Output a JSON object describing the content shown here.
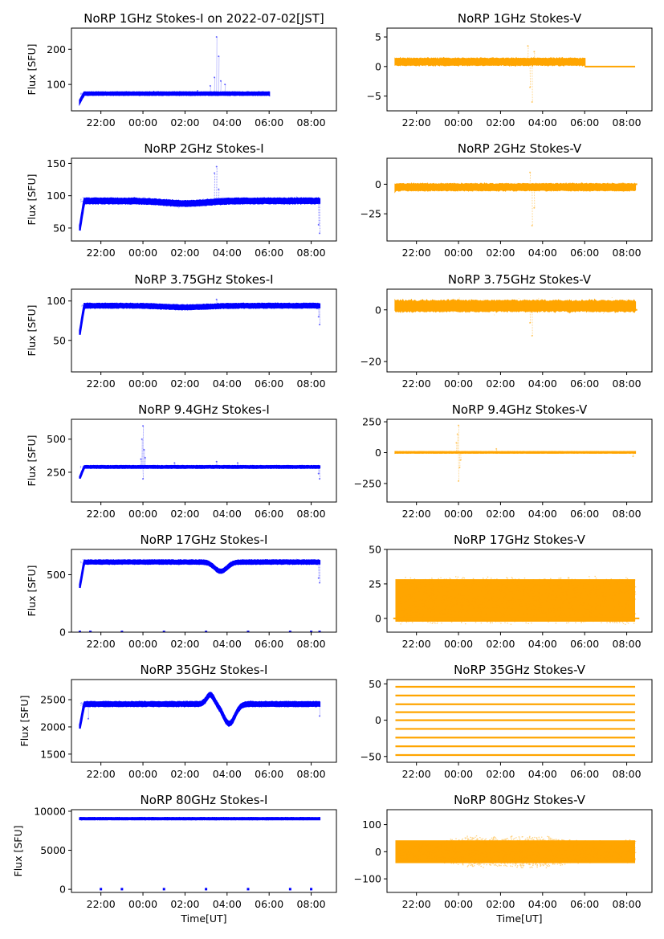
{
  "chart_data": [
    {
      "type": "scatter",
      "title": "NoRP 1GHz Stokes-I on 2022-07-02[JST]",
      "ylabel": "Flux [SFU]",
      "xlabel": "",
      "color": "#0000ff",
      "xlim": [
        20.6,
        33.2
      ],
      "ylim": [
        25,
        260
      ],
      "yticks": [
        {
          "v": 100,
          "label": "100"
        },
        {
          "v": 200,
          "label": "200"
        }
      ],
      "series": [
        {
          "name": "",
          "x_start": 21.0,
          "x_end": 30.0,
          "level": 74,
          "noise": 3,
          "rise_from": 52,
          "spikes": [
            {
              "x": 23.2,
              "y": 78
            },
            {
              "x": 24.5,
              "y": 80
            },
            {
              "x": 26.6,
              "y": 82
            },
            {
              "x": 27.2,
              "y": 96
            },
            {
              "x": 27.4,
              "y": 120
            },
            {
              "x": 27.5,
              "y": 235
            },
            {
              "x": 27.6,
              "y": 180
            },
            {
              "x": 27.7,
              "y": 110
            },
            {
              "x": 27.9,
              "y": 100
            }
          ]
        }
      ]
    },
    {
      "type": "scatter",
      "title": "NoRP 1GHz Stokes-V",
      "ylabel": "",
      "xlabel": "",
      "color": "#ffa500",
      "xlim": [
        20.6,
        33.2
      ],
      "ylim": [
        -7.5,
        6.5
      ],
      "yticks": [
        {
          "v": 5,
          "label": "5"
        },
        {
          "v": 0,
          "label": "0"
        },
        {
          "v": -5,
          "label": "−5"
        }
      ],
      "series": [
        {
          "name": "",
          "x_start": 21.0,
          "x_end": 30.0,
          "level": 0.8,
          "noise": 0.4,
          "tail_start": 30.0,
          "tail_end": 32.4,
          "tail_level": 0.0,
          "spikes": [
            {
              "x": 27.3,
              "y": 3.5
            },
            {
              "x": 27.4,
              "y": -3.5
            },
            {
              "x": 27.5,
              "y": -6.0
            },
            {
              "x": 27.6,
              "y": 2.5
            }
          ]
        }
      ]
    },
    {
      "type": "scatter",
      "title": "NoRP 2GHz Stokes-I",
      "ylabel": "Flux [SFU]",
      "xlabel": "",
      "color": "#0000ff",
      "xlim": [
        20.6,
        33.2
      ],
      "ylim": [
        30,
        158
      ],
      "yticks": [
        {
          "v": 50,
          "label": "50"
        },
        {
          "v": 100,
          "label": "100"
        },
        {
          "v": 150,
          "label": "150"
        }
      ],
      "series": [
        {
          "name": "",
          "x_start": 21.0,
          "x_end": 32.4,
          "level": 92,
          "noise": 3,
          "rise_from": 50,
          "dip": {
            "x": 26,
            "depth": 4,
            "width": 4
          },
          "spikes": [
            {
              "x": 27.5,
              "y": 145
            },
            {
              "x": 27.4,
              "y": 135
            },
            {
              "x": 27.6,
              "y": 110
            },
            {
              "x": 32.4,
              "y": 42
            },
            {
              "x": 32.35,
              "y": 55
            }
          ]
        }
      ]
    },
    {
      "type": "scatter",
      "title": "NoRP 2GHz Stokes-V",
      "ylabel": "",
      "xlabel": "",
      "color": "#ffa500",
      "xlim": [
        20.6,
        33.2
      ],
      "ylim": [
        -48,
        22
      ],
      "yticks": [
        {
          "v": 0,
          "label": "0"
        },
        {
          "v": -25,
          "label": "−25"
        }
      ],
      "series": [
        {
          "name": "",
          "x_start": 21.0,
          "x_end": 32.4,
          "level": -2.5,
          "noise": 2,
          "tail_start": 32.4,
          "tail_end": 32.5,
          "tail_level": 0.0,
          "spikes": [
            {
              "x": 27.4,
              "y": 10
            },
            {
              "x": 27.5,
              "y": -35
            },
            {
              "x": 27.6,
              "y": -20
            }
          ]
        }
      ]
    },
    {
      "type": "scatter",
      "title": "NoRP 3.75GHz Stokes-I",
      "ylabel": "Flux [SFU]",
      "xlabel": "",
      "color": "#0000ff",
      "xlim": [
        20.6,
        33.2
      ],
      "ylim": [
        10,
        115
      ],
      "yticks": [
        {
          "v": 50,
          "label": "50"
        },
        {
          "v": 100,
          "label": "100"
        }
      ],
      "series": [
        {
          "name": "",
          "x_start": 21.0,
          "x_end": 32.4,
          "level": 94,
          "noise": 2,
          "rise_from": 60,
          "dip": {
            "x": 26,
            "depth": 2,
            "width": 4
          },
          "spikes": [
            {
              "x": 27.5,
              "y": 102
            },
            {
              "x": 32.4,
              "y": 70
            },
            {
              "x": 32.35,
              "y": 80
            }
          ]
        }
      ]
    },
    {
      "type": "scatter",
      "title": "NoRP 3.75GHz Stokes-V",
      "ylabel": "",
      "xlabel": "",
      "color": "#ffa500",
      "xlim": [
        20.6,
        33.2
      ],
      "ylim": [
        -24,
        8
      ],
      "yticks": [
        {
          "v": 0,
          "label": "0"
        },
        {
          "v": -20,
          "label": "−20"
        }
      ],
      "series": [
        {
          "name": "",
          "x_start": 21.0,
          "x_end": 32.4,
          "level": 1.5,
          "noise": 1.5,
          "tail_start": 32.4,
          "tail_end": 32.5,
          "tail_level": 0.0,
          "spikes": [
            {
              "x": 27.4,
              "y": -5
            },
            {
              "x": 27.5,
              "y": -10
            }
          ]
        }
      ]
    },
    {
      "type": "scatter",
      "title": "NoRP 9.4GHz Stokes-I",
      "ylabel": "Flux [SFU]",
      "xlabel": "",
      "color": "#0000ff",
      "xlim": [
        20.6,
        33.2
      ],
      "ylim": [
        25,
        650
      ],
      "yticks": [
        {
          "v": 250,
          "label": "250"
        },
        {
          "v": 500,
          "label": "500"
        }
      ],
      "series": [
        {
          "name": "",
          "x_start": 21.0,
          "x_end": 32.4,
          "level": 290,
          "noise": 6,
          "rise_from": 210,
          "spikes": [
            {
              "x": 24.0,
              "y": 600
            },
            {
              "x": 23.95,
              "y": 500
            },
            {
              "x": 24.05,
              "y": 420
            },
            {
              "x": 24.1,
              "y": 360
            },
            {
              "x": 23.9,
              "y": 350
            },
            {
              "x": 24.0,
              "y": 200
            },
            {
              "x": 25.5,
              "y": 320
            },
            {
              "x": 27.5,
              "y": 330
            },
            {
              "x": 28.5,
              "y": 320
            },
            {
              "x": 32.4,
              "y": 200
            },
            {
              "x": 32.35,
              "y": 240
            }
          ]
        }
      ]
    },
    {
      "type": "scatter",
      "title": "NoRP 9.4GHz Stokes-V",
      "ylabel": "",
      "xlabel": "",
      "color": "#ffa500",
      "xlim": [
        20.6,
        33.2
      ],
      "ylim": [
        -400,
        270
      ],
      "yticks": [
        {
          "v": 250,
          "label": "250"
        },
        {
          "v": 0,
          "label": "0"
        },
        {
          "v": -250,
          "label": "−250"
        }
      ],
      "series": [
        {
          "name": "",
          "x_start": 21.0,
          "x_end": 32.4,
          "level": 2,
          "noise": 3,
          "spikes": [
            {
              "x": 24.0,
              "y": 220
            },
            {
              "x": 23.95,
              "y": 150
            },
            {
              "x": 24.05,
              "y": -120
            },
            {
              "x": 24.0,
              "y": -230
            },
            {
              "x": 23.9,
              "y": 80
            },
            {
              "x": 24.1,
              "y": -60
            },
            {
              "x": 25.8,
              "y": 30
            },
            {
              "x": 32.3,
              "y": -30
            }
          ]
        }
      ]
    },
    {
      "type": "scatter",
      "title": "NoRP 17GHz Stokes-I",
      "ylabel": "Flux [SFU]",
      "xlabel": "",
      "color": "#0000ff",
      "xlim": [
        20.6,
        33.2
      ],
      "ylim": [
        0,
        720
      ],
      "yticks": [
        {
          "v": 0,
          "label": "0"
        },
        {
          "v": 500,
          "label": "500"
        }
      ],
      "series": [
        {
          "name": "",
          "x_start": 21.0,
          "x_end": 32.4,
          "level": 610,
          "noise": 12,
          "rise_from": 400,
          "dip": {
            "x": 27.7,
            "depth": 80,
            "width": 1.2
          },
          "dots": [
            {
              "x": 21.0,
              "y": 2
            },
            {
              "x": 21.5,
              "y": 2
            },
            {
              "x": 23.0,
              "y": 2
            },
            {
              "x": 25.0,
              "y": 2
            },
            {
              "x": 27.0,
              "y": 2
            },
            {
              "x": 29.0,
              "y": 2
            },
            {
              "x": 31.0,
              "y": 2
            },
            {
              "x": 32.0,
              "y": 2
            },
            {
              "x": 32.4,
              "y": 2
            }
          ],
          "spikes": [
            {
              "x": 32.4,
              "y": 430
            },
            {
              "x": 32.35,
              "y": 470
            }
          ]
        }
      ]
    },
    {
      "type": "scatter",
      "title": "NoRP 17GHz Stokes-V",
      "ylabel": "",
      "xlabel": "",
      "color": "#ffa500",
      "xlim": [
        20.6,
        33.2
      ],
      "ylim": [
        -10,
        50
      ],
      "yticks": [
        {
          "v": 50,
          "label": "50"
        },
        {
          "v": 25,
          "label": "25"
        },
        {
          "v": 0,
          "label": "0"
        }
      ],
      "series": [
        {
          "name": "",
          "x_start": 21.0,
          "x_end": 32.4,
          "level": 13,
          "noise": 11,
          "band": true,
          "tail_level": 0.0
        }
      ]
    },
    {
      "type": "scatter",
      "title": "NoRP 35GHz Stokes-I",
      "ylabel": "Flux [SFU]",
      "xlabel": "",
      "color": "#0000ff",
      "xlim": [
        20.6,
        33.2
      ],
      "ylim": [
        1350,
        2870
      ],
      "yticks": [
        {
          "v": 1500,
          "label": "1500"
        },
        {
          "v": 2000,
          "label": "2000"
        },
        {
          "v": 2500,
          "label": "2500"
        }
      ],
      "series": [
        {
          "name": "",
          "x_start": 21.0,
          "x_end": 32.4,
          "level": 2420,
          "noise": 30,
          "rise_from": 2000,
          "dip": {
            "x": 28.1,
            "depth": 360,
            "width": 1.1
          },
          "bump": {
            "x": 27.2,
            "height": 170,
            "width": 0.5
          },
          "spikes": [
            {
              "x": 21.4,
              "y": 2150
            },
            {
              "x": 32.4,
              "y": 2200
            }
          ]
        }
      ]
    },
    {
      "type": "scatter",
      "title": "NoRP 35GHz Stokes-V",
      "ylabel": "",
      "xlabel": "",
      "color": "#ffa500",
      "xlim": [
        20.6,
        33.2
      ],
      "ylim": [
        -58,
        56
      ],
      "yticks": [
        {
          "v": 50,
          "label": "50"
        },
        {
          "v": 0,
          "label": "0"
        },
        {
          "v": -50,
          "label": "−50"
        }
      ],
      "series": [
        {
          "name": "",
          "x_start": 21.0,
          "x_end": 32.4,
          "levels": [
            -48,
            -36,
            -24,
            -12,
            0,
            11,
            22,
            34,
            46
          ],
          "quantized": true
        }
      ]
    },
    {
      "type": "scatter",
      "title": "NoRP 80GHz Stokes-I",
      "ylabel": "Flux [SFU]",
      "xlabel": "Time[UT]",
      "color": "#0000ff",
      "xlim": [
        20.6,
        33.2
      ],
      "ylim": [
        -400,
        10200
      ],
      "yticks": [
        {
          "v": 0,
          "label": "0"
        },
        {
          "v": 5000,
          "label": "5000"
        },
        {
          "v": 10000,
          "label": "10000"
        }
      ],
      "series": [
        {
          "name": "",
          "x_start": 21.0,
          "x_end": 32.4,
          "level": 9050,
          "noise": 80,
          "dots": [
            {
              "x": 22.0,
              "y": 20
            },
            {
              "x": 23.0,
              "y": 20
            },
            {
              "x": 25.0,
              "y": 20
            },
            {
              "x": 27.0,
              "y": 20
            },
            {
              "x": 29.0,
              "y": 20
            },
            {
              "x": 31.0,
              "y": 20
            },
            {
              "x": 32.0,
              "y": 20
            }
          ]
        }
      ]
    },
    {
      "type": "scatter",
      "title": "NoRP 80GHz Stokes-V",
      "ylabel": "",
      "xlabel": "Time[UT]",
      "color": "#ffa500",
      "xlim": [
        20.6,
        33.2
      ],
      "ylim": [
        -150,
        155
      ],
      "yticks": [
        {
          "v": 100,
          "label": "100"
        },
        {
          "v": 0,
          "label": "0"
        },
        {
          "v": -100,
          "label": "−100"
        }
      ],
      "series": [
        {
          "name": "",
          "x_start": 21.0,
          "x_end": 32.4,
          "level": 0,
          "noise": 45,
          "band": true,
          "envelope": [
            [
              21,
              38
            ],
            [
              23,
              40
            ],
            [
              24.5,
              60
            ],
            [
              26,
              60
            ],
            [
              28,
              65
            ],
            [
              29.5,
              45
            ],
            [
              31,
              40
            ],
            [
              32.4,
              45
            ]
          ]
        }
      ]
    }
  ],
  "x_ticks": [
    {
      "v": 22,
      "label": "22:00"
    },
    {
      "v": 24,
      "label": "00:00"
    },
    {
      "v": 26,
      "label": "02:00"
    },
    {
      "v": 28,
      "label": "04:00"
    },
    {
      "v": 30,
      "label": "06:00"
    },
    {
      "v": 32,
      "label": "08:00"
    }
  ]
}
